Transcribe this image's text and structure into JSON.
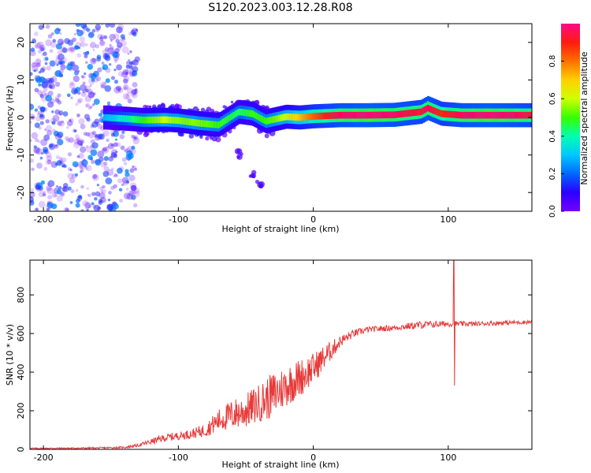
{
  "figure_title": "S120.2023.003.12.28.R08",
  "colorbar": {
    "label": "Normalized spectral amplitude",
    "ticks": [
      "0.0",
      "0.2",
      "0.4",
      "0.6",
      "0.8"
    ],
    "range": [
      0,
      1
    ]
  },
  "chart_data": [
    {
      "type": "heatmap",
      "title": "",
      "xlabel": "Height of straight line (km)",
      "ylabel": "Frequency (Hz)",
      "xlim": [
        -210,
        162
      ],
      "ylim": [
        -25,
        25
      ],
      "x_ticks": [
        "-200",
        "-100",
        "0",
        "100"
      ],
      "y_ticks": [
        "20",
        "10",
        "0",
        "-10",
        "-20"
      ],
      "colormap": [
        "#7400ff",
        "#2a00ff",
        "#0068ff",
        "#00c8ff",
        "#00ffb0",
        "#36ff00",
        "#cfff00",
        "#ffd000",
        "#ff7000",
        "#ff1a10",
        "#ff0066",
        "#ff0a88"
      ],
      "ridge": [
        {
          "x": -155,
          "f": 0.0,
          "amp": 0.25
        },
        {
          "x": -140,
          "f": -0.3,
          "amp": 0.35
        },
        {
          "x": -125,
          "f": -0.7,
          "amp": 0.45
        },
        {
          "x": -110,
          "f": -0.6,
          "amp": 0.55
        },
        {
          "x": -100,
          "f": -0.8,
          "amp": 0.5
        },
        {
          "x": -85,
          "f": -1.5,
          "amp": 0.5
        },
        {
          "x": -70,
          "f": -2.0,
          "amp": 0.45
        },
        {
          "x": -55,
          "f": 1.5,
          "amp": 0.4
        },
        {
          "x": -45,
          "f": 1.0,
          "amp": 0.45
        },
        {
          "x": -35,
          "f": -1.0,
          "amp": 0.45
        },
        {
          "x": -20,
          "f": 0.2,
          "amp": 0.55
        },
        {
          "x": -10,
          "f": 0.0,
          "amp": 0.65
        },
        {
          "x": 0,
          "f": 0.3,
          "amp": 0.75
        },
        {
          "x": 20,
          "f": 0.6,
          "amp": 0.9
        },
        {
          "x": 40,
          "f": 0.6,
          "amp": 0.95
        },
        {
          "x": 60,
          "f": 0.7,
          "amp": 0.9
        },
        {
          "x": 80,
          "f": 1.5,
          "amp": 0.85
        },
        {
          "x": 85,
          "f": 2.5,
          "amp": 0.9
        },
        {
          "x": 95,
          "f": 1.0,
          "amp": 0.8
        },
        {
          "x": 110,
          "f": 0.6,
          "amp": 0.9
        },
        {
          "x": 130,
          "f": 0.6,
          "amp": 0.95
        },
        {
          "x": 150,
          "f": 0.6,
          "amp": 0.9
        },
        {
          "x": 162,
          "f": 0.6,
          "amp": 0.85
        }
      ],
      "noise_region": {
        "x": [
          -210,
          -130
        ],
        "f": [
          -25,
          25
        ]
      },
      "secondary_branch": [
        {
          "x": -55,
          "f": -10.0
        },
        {
          "x": -45,
          "f": -15.0
        },
        {
          "x": -40,
          "f": -18.0
        }
      ]
    },
    {
      "type": "line",
      "title": "",
      "xlabel": "Height of straight line (km)",
      "ylabel": "SNR (10 * v/v)",
      "xlim": [
        -210,
        162
      ],
      "ylim": [
        0,
        980
      ],
      "x_ticks": [
        "-200",
        "-100",
        "0",
        "100"
      ],
      "y_ticks": [
        "0",
        "200",
        "400",
        "600",
        "800"
      ],
      "color": "#e83a3a",
      "envelope": [
        {
          "x": -210,
          "y": 5,
          "noise": 3
        },
        {
          "x": -170,
          "y": 6,
          "noise": 4
        },
        {
          "x": -140,
          "y": 10,
          "noise": 5
        },
        {
          "x": -130,
          "y": 20,
          "noise": 8
        },
        {
          "x": -120,
          "y": 40,
          "noise": 15
        },
        {
          "x": -110,
          "y": 60,
          "noise": 20
        },
        {
          "x": -100,
          "y": 70,
          "noise": 20
        },
        {
          "x": -90,
          "y": 80,
          "noise": 25
        },
        {
          "x": -80,
          "y": 100,
          "noise": 35
        },
        {
          "x": -70,
          "y": 150,
          "noise": 60
        },
        {
          "x": -60,
          "y": 180,
          "noise": 80
        },
        {
          "x": -50,
          "y": 200,
          "noise": 90
        },
        {
          "x": -40,
          "y": 240,
          "noise": 100
        },
        {
          "x": -30,
          "y": 280,
          "noise": 120
        },
        {
          "x": -20,
          "y": 330,
          "noise": 110
        },
        {
          "x": -10,
          "y": 370,
          "noise": 100
        },
        {
          "x": 0,
          "y": 420,
          "noise": 80
        },
        {
          "x": 10,
          "y": 490,
          "noise": 60
        },
        {
          "x": 20,
          "y": 560,
          "noise": 30
        },
        {
          "x": 30,
          "y": 600,
          "noise": 20
        },
        {
          "x": 40,
          "y": 620,
          "noise": 15
        },
        {
          "x": 60,
          "y": 630,
          "noise": 15
        },
        {
          "x": 80,
          "y": 645,
          "noise": 20
        },
        {
          "x": 100,
          "y": 650,
          "noise": 15
        },
        {
          "x": 120,
          "y": 650,
          "noise": 12
        },
        {
          "x": 140,
          "y": 655,
          "noise": 12
        },
        {
          "x": 162,
          "y": 660,
          "noise": 10
        }
      ],
      "spike": {
        "x": 104,
        "ymax": 980,
        "ymin": 330
      }
    }
  ]
}
